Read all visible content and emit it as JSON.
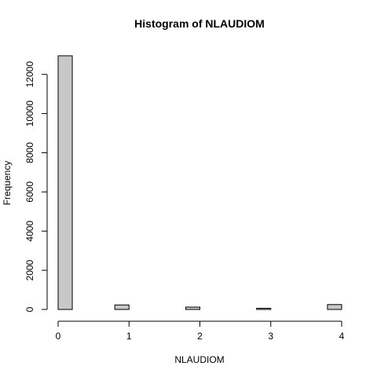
{
  "chart_data": {
    "type": "bar",
    "title": "Histogram of NLAUDIOM",
    "xlabel": "NLAUDIOM",
    "ylabel": "Frequency",
    "x_range": [
      0,
      4
    ],
    "ylim": [
      0,
      12950
    ],
    "x_ticks": [
      "0",
      "1",
      "2",
      "3",
      "4"
    ],
    "y_ticks": [
      "0",
      "2000",
      "4000",
      "6000",
      "8000",
      "10000",
      "12000"
    ],
    "bin_width": 0.2,
    "bins": [
      {
        "start": 0.0,
        "end": 0.2,
        "count": 12950
      },
      {
        "start": 0.2,
        "end": 0.4,
        "count": 0
      },
      {
        "start": 0.4,
        "end": 0.6,
        "count": 0
      },
      {
        "start": 0.6,
        "end": 0.8,
        "count": 0
      },
      {
        "start": 0.8,
        "end": 1.0,
        "count": 230
      },
      {
        "start": 1.0,
        "end": 1.2,
        "count": 0
      },
      {
        "start": 1.2,
        "end": 1.4,
        "count": 0
      },
      {
        "start": 1.4,
        "end": 1.6,
        "count": 0
      },
      {
        "start": 1.6,
        "end": 1.8,
        "count": 0
      },
      {
        "start": 1.8,
        "end": 2.0,
        "count": 120
      },
      {
        "start": 2.0,
        "end": 2.2,
        "count": 0
      },
      {
        "start": 2.2,
        "end": 2.4,
        "count": 0
      },
      {
        "start": 2.4,
        "end": 2.6,
        "count": 0
      },
      {
        "start": 2.6,
        "end": 2.8,
        "count": 0
      },
      {
        "start": 2.8,
        "end": 3.0,
        "count": 60
      },
      {
        "start": 3.0,
        "end": 3.2,
        "count": 0
      },
      {
        "start": 3.2,
        "end": 3.4,
        "count": 0
      },
      {
        "start": 3.4,
        "end": 3.6,
        "count": 0
      },
      {
        "start": 3.6,
        "end": 3.8,
        "count": 0
      },
      {
        "start": 3.8,
        "end": 4.0,
        "count": 250
      }
    ],
    "bar_color": "#c8c8c8",
    "grid": false
  }
}
